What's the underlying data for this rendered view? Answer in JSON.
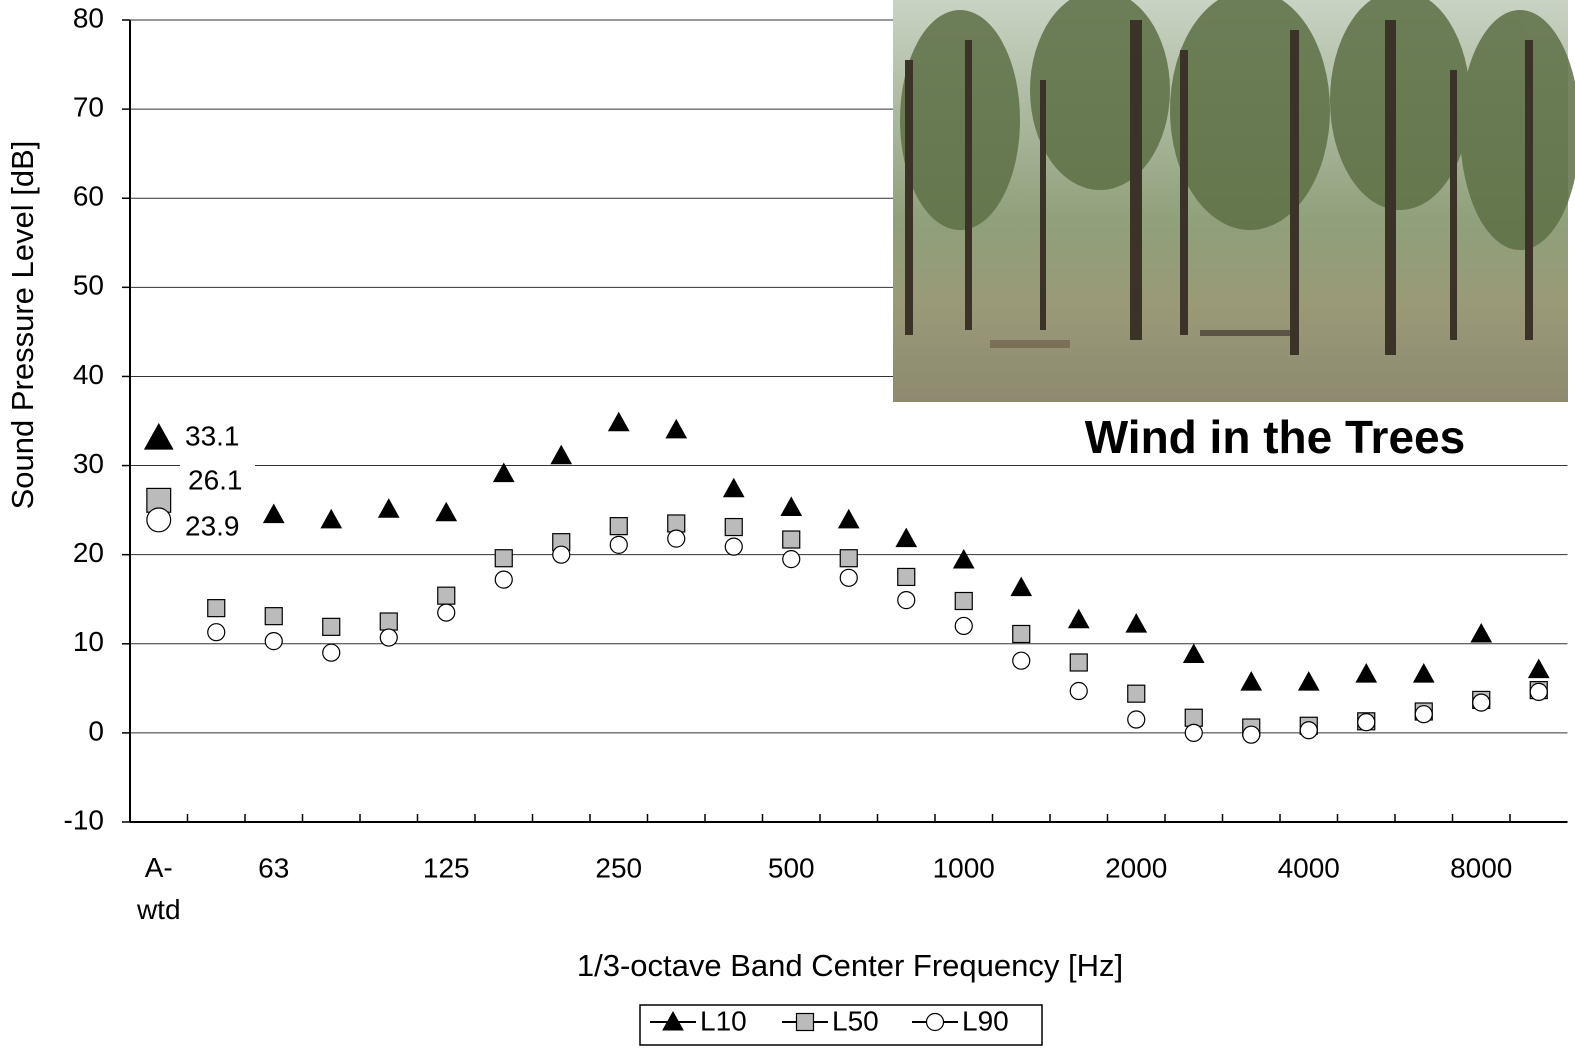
{
  "chart_data": {
    "type": "line",
    "annotation": "Wind in the Trees",
    "xlabel": "1/3-octave Band Center Frequency [Hz]",
    "ylabel": "Sound Pressure Level [dB]",
    "categories": [
      "A-\nwtd",
      null,
      "63",
      null,
      null,
      "125",
      null,
      null,
      "250",
      null,
      null,
      "500",
      null,
      null,
      "1000",
      null,
      null,
      "2000",
      null,
      null,
      "4000",
      null,
      null,
      "8000",
      null
    ],
    "ylim": [
      -10,
      80
    ],
    "yticks": [
      -10,
      0,
      10,
      20,
      30,
      40,
      50,
      60,
      70,
      80
    ],
    "grid": true,
    "legend": "bottom",
    "series": [
      {
        "name": "L10",
        "color": "#000000",
        "marker": "triangle",
        "values": [
          33.1,
          24.6,
          24.5,
          23.9,
          25.1,
          24.7,
          29.1,
          31.1,
          34.8,
          34.0,
          27.4,
          25.3,
          23.9,
          21.8,
          19.4,
          16.3,
          12.7,
          12.2,
          8.8,
          5.7,
          5.7,
          6.6,
          6.6,
          11.1,
          7.1
        ]
      },
      {
        "name": "L50",
        "color": "#bbbbbb",
        "marker": "square",
        "values": [
          26.1,
          14.0,
          13.1,
          11.9,
          12.5,
          15.4,
          19.6,
          21.4,
          23.2,
          23.5,
          23.1,
          21.7,
          19.6,
          17.5,
          14.8,
          11.1,
          7.9,
          4.4,
          1.7,
          0.6,
          0.8,
          1.3,
          2.4,
          3.7,
          4.8
        ]
      },
      {
        "name": "L90",
        "color": "#ffffff",
        "marker": "circle",
        "values": [
          23.9,
          11.3,
          10.3,
          9.0,
          10.7,
          13.5,
          17.2,
          20.0,
          21.1,
          21.8,
          20.9,
          19.5,
          17.4,
          14.9,
          12.0,
          8.1,
          4.7,
          1.5,
          0.0,
          -0.2,
          0.3,
          1.2,
          2.1,
          3.4,
          4.6
        ]
      }
    ]
  }
}
